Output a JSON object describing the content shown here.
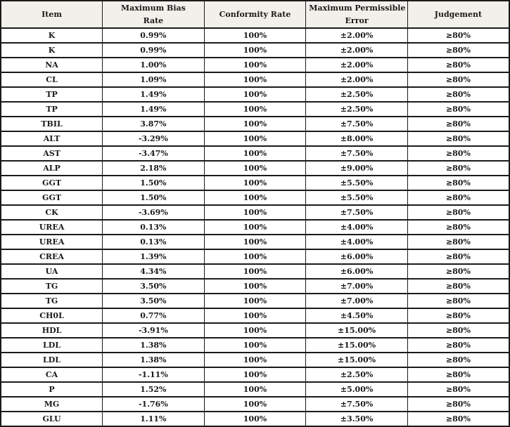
{
  "colors": {
    "header_bg": "#f2f0ea",
    "border": "#1a1a1a",
    "text": "#1a1a1a"
  },
  "table": {
    "header": {
      "item": "Item",
      "max_bias_line1": "Maximum Bias",
      "max_bias_line2": "Rate",
      "conformity": "Conformity Rate",
      "mpe_line1": "Maximum Permissible",
      "mpe_line2": "Error",
      "judgement": "Judgement"
    },
    "rows": [
      {
        "item": "K",
        "max_bias_rate": "0.99%",
        "conformity_rate": "100%",
        "max_permissible_error": "±2.00%",
        "judgement": "≥80%"
      },
      {
        "item": "K",
        "max_bias_rate": "0.99%",
        "conformity_rate": "100%",
        "max_permissible_error": "±2.00%",
        "judgement": "≥80%"
      },
      {
        "item": "NA",
        "max_bias_rate": "1.00%",
        "conformity_rate": "100%",
        "max_permissible_error": "±2.00%",
        "judgement": "≥80%"
      },
      {
        "item": "CL",
        "max_bias_rate": "1.09%",
        "conformity_rate": "100%",
        "max_permissible_error": "±2.00%",
        "judgement": "≥80%"
      },
      {
        "item": "TP",
        "max_bias_rate": "1.49%",
        "conformity_rate": "100%",
        "max_permissible_error": "±2.50%",
        "judgement": "≥80%"
      },
      {
        "item": "TP",
        "max_bias_rate": "1.49%",
        "conformity_rate": "100%",
        "max_permissible_error": "±2.50%",
        "judgement": "≥80%"
      },
      {
        "item": "TBIL",
        "max_bias_rate": "3.87%",
        "conformity_rate": "100%",
        "max_permissible_error": "±7.50%",
        "judgement": "≥80%"
      },
      {
        "item": "ALT",
        "max_bias_rate": "-3.29%",
        "conformity_rate": "100%",
        "max_permissible_error": "±8.00%",
        "judgement": "≥80%"
      },
      {
        "item": "AST",
        "max_bias_rate": "-3.47%",
        "conformity_rate": "100%",
        "max_permissible_error": "±7.50%",
        "judgement": "≥80%"
      },
      {
        "item": "ALP",
        "max_bias_rate": "2.18%",
        "conformity_rate": "100%",
        "max_permissible_error": "±9.00%",
        "judgement": "≥80%"
      },
      {
        "item": "GGT",
        "max_bias_rate": "1.50%",
        "conformity_rate": "100%",
        "max_permissible_error": "±5.50%",
        "judgement": "≥80%"
      },
      {
        "item": "GGT",
        "max_bias_rate": "1.50%",
        "conformity_rate": "100%",
        "max_permissible_error": "±5.50%",
        "judgement": "≥80%"
      },
      {
        "item": "CK",
        "max_bias_rate": "-3.69%",
        "conformity_rate": "100%",
        "max_permissible_error": "±7.50%",
        "judgement": "≥80%"
      },
      {
        "item": "UREA",
        "max_bias_rate": "0.13%",
        "conformity_rate": "100%",
        "max_permissible_error": "±4.00%",
        "judgement": "≥80%"
      },
      {
        "item": "UREA",
        "max_bias_rate": "0.13%",
        "conformity_rate": "100%",
        "max_permissible_error": "±4.00%",
        "judgement": "≥80%"
      },
      {
        "item": "CREA",
        "max_bias_rate": "1.39%",
        "conformity_rate": "100%",
        "max_permissible_error": "±6.00%",
        "judgement": "≥80%"
      },
      {
        "item": "UA",
        "max_bias_rate": "4.34%",
        "conformity_rate": "100%",
        "max_permissible_error": "±6.00%",
        "judgement": "≥80%"
      },
      {
        "item": "TG",
        "max_bias_rate": "3.50%",
        "conformity_rate": "100%",
        "max_permissible_error": "±7.00%",
        "judgement": "≥80%"
      },
      {
        "item": "TG",
        "max_bias_rate": "3.50%",
        "conformity_rate": "100%",
        "max_permissible_error": "±7.00%",
        "judgement": "≥80%"
      },
      {
        "item": "CH0L",
        "max_bias_rate": "0.77%",
        "conformity_rate": "100%",
        "max_permissible_error": "±4.50%",
        "judgement": "≥80%"
      },
      {
        "item": "HDL",
        "max_bias_rate": "-3.91%",
        "conformity_rate": "100%",
        "max_permissible_error": "±15.00%",
        "judgement": "≥80%"
      },
      {
        "item": "LDL",
        "max_bias_rate": "1.38%",
        "conformity_rate": "100%",
        "max_permissible_error": "±15.00%",
        "judgement": "≥80%"
      },
      {
        "item": "LDL",
        "max_bias_rate": "1.38%",
        "conformity_rate": "100%",
        "max_permissible_error": "±15.00%",
        "judgement": "≥80%"
      },
      {
        "item": "CA",
        "max_bias_rate": "-1.11%",
        "conformity_rate": "100%",
        "max_permissible_error": "±2.50%",
        "judgement": "≥80%"
      },
      {
        "item": "P",
        "max_bias_rate": "1.52%",
        "conformity_rate": "100%",
        "max_permissible_error": "±5.00%",
        "judgement": "≥80%"
      },
      {
        "item": "MG",
        "max_bias_rate": "-1.76%",
        "conformity_rate": "100%",
        "max_permissible_error": "±7.50%",
        "judgement": "≥80%"
      },
      {
        "item": "GLU",
        "max_bias_rate": "1.11%",
        "conformity_rate": "100%",
        "max_permissible_error": "±3.50%",
        "judgement": "≥80%"
      }
    ]
  }
}
